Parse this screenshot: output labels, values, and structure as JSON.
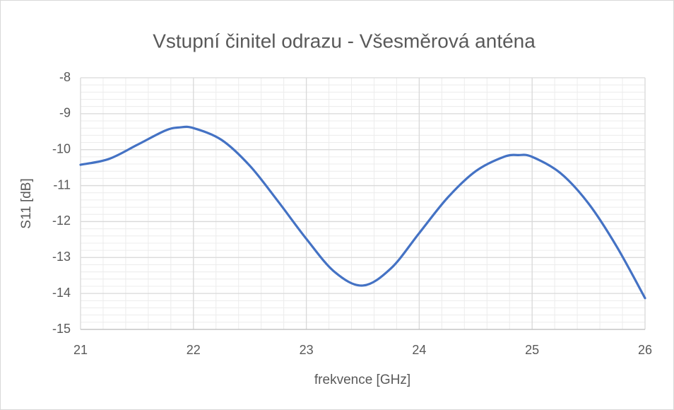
{
  "chart_data": {
    "type": "line",
    "title": "Vstupní činitel odrazu - Všesměrová anténa",
    "x_label": "frekvence [GHz]",
    "y_label": "S11 [dB]",
    "x": [
      21,
      21.25,
      21.5,
      21.75,
      21.88,
      22,
      22.25,
      22.5,
      22.75,
      23,
      23.25,
      23.5,
      23.75,
      24,
      24.25,
      24.5,
      24.75,
      24.88,
      25,
      25.25,
      25.5,
      25.75,
      26
    ],
    "series": [
      {
        "name": "S11",
        "color": "#4472c4",
        "values": [
          -10.42,
          -10.26,
          -9.87,
          -9.47,
          -9.38,
          -9.4,
          -9.73,
          -10.45,
          -11.44,
          -12.48,
          -13.4,
          -13.78,
          -13.3,
          -12.32,
          -11.34,
          -10.6,
          -10.2,
          -10.15,
          -10.2,
          -10.65,
          -11.5,
          -12.7,
          -14.13
        ]
      }
    ],
    "xlim": [
      21,
      26
    ],
    "xticks": [
      21,
      22,
      23,
      24,
      25,
      26
    ],
    "ylim": [
      -15,
      -8
    ],
    "yticks": [
      -15,
      -14,
      -13,
      -12,
      -11,
      -10,
      -9,
      -8
    ],
    "grid": true,
    "minor_grid": {
      "x": 0.2,
      "y": 0.2
    }
  }
}
